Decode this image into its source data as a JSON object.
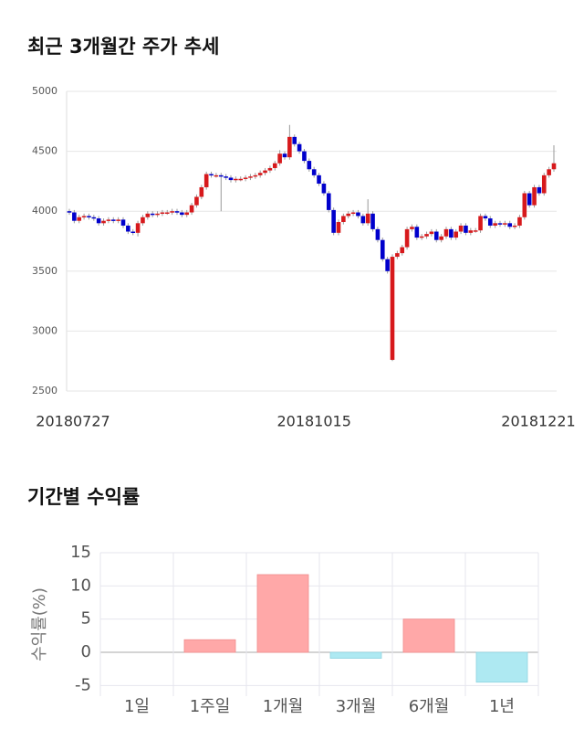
{
  "chart_data": [
    {
      "type": "candlestick",
      "title": "최근 3개월간 주가 추세",
      "categories": [
        "20180727",
        null,
        null,
        null,
        null,
        null,
        null,
        null,
        null,
        null,
        null,
        null,
        null,
        null,
        null,
        null,
        null,
        null,
        null,
        null,
        null,
        null,
        null,
        null,
        null,
        null,
        null,
        null,
        null,
        null,
        null,
        null,
        null,
        null,
        null,
        null,
        null,
        null,
        null,
        null,
        null,
        null,
        null,
        null,
        null,
        null,
        null,
        null,
        null,
        null,
        "20181015",
        null,
        null,
        null,
        null,
        null,
        null,
        null,
        null,
        null,
        null,
        null,
        null,
        null,
        null,
        null,
        null,
        null,
        null,
        null,
        null,
        null,
        null,
        null,
        null,
        null,
        null,
        null,
        null,
        null,
        null,
        null,
        null,
        null,
        null,
        null,
        null,
        null,
        null,
        null,
        null,
        null,
        null,
        null,
        null,
        null,
        null,
        null,
        null,
        "20181221"
      ],
      "open": [
        4000,
        3990,
        3920,
        3950,
        3960,
        3950,
        3940,
        3900,
        3920,
        3930,
        3920,
        3930,
        3880,
        3830,
        3820,
        3900,
        3950,
        3980,
        3970,
        3980,
        3990,
        3990,
        4000,
        3990,
        3970,
        3990,
        4050,
        4120,
        4200,
        4310,
        4300,
        4300,
        4290,
        4280,
        4260,
        4270,
        4270,
        4280,
        4290,
        4300,
        4320,
        4340,
        4360,
        4400,
        4480,
        4450,
        4620,
        4560,
        4500,
        4420,
        4350,
        4300,
        4230,
        4150,
        4010,
        3820,
        3910,
        3960,
        3980,
        3990,
        3960,
        3900,
        3980,
        3850,
        3760,
        3600,
        2760,
        3620,
        3650,
        3700,
        3850,
        3870,
        3780,
        3790,
        3810,
        3830,
        3760,
        3790,
        3850,
        3780,
        3830,
        3880,
        3820,
        3840,
        3840,
        3960,
        3940,
        3880,
        3900,
        3890,
        3900,
        3870,
        3880,
        3950,
        4150,
        4050,
        4200,
        4150,
        4300,
        4350
      ],
      "high": [
        4020,
        4010,
        3970,
        3980,
        3980,
        3970,
        3960,
        3940,
        3950,
        3950,
        3950,
        3950,
        3900,
        3850,
        3920,
        3970,
        4000,
        4000,
        4000,
        4010,
        4010,
        4020,
        4020,
        4010,
        4010,
        4070,
        4140,
        4220,
        4330,
        4330,
        4320,
        4320,
        4310,
        4300,
        4290,
        4290,
        4300,
        4310,
        4320,
        4340,
        4360,
        4380,
        4420,
        4510,
        4500,
        4720,
        4640,
        4580,
        4520,
        4440,
        4370,
        4320,
        4250,
        4170,
        4030,
        3930,
        3980,
        4000,
        4010,
        4010,
        3980,
        4100,
        4000,
        3870,
        3780,
        3620,
        3640,
        3670,
        3720,
        3870,
        3890,
        3890,
        3810,
        3830,
        3850,
        3850,
        3810,
        3870,
        3870,
        3850,
        3900,
        3900,
        3860,
        3860,
        3980,
        3980,
        3960,
        3920,
        3920,
        3920,
        3920,
        3900,
        3970,
        4170,
        4170,
        4220,
        4220,
        4320,
        4370,
        4550
      ],
      "low": [
        3970,
        3900,
        3900,
        3930,
        3930,
        3920,
        3880,
        3880,
        3900,
        3900,
        3900,
        3860,
        3810,
        3800,
        3790,
        3880,
        3930,
        3950,
        3950,
        3960,
        3970,
        3970,
        3970,
        3950,
        3950,
        3970,
        4030,
        4100,
        4180,
        4280,
        4280,
        4000,
        4260,
        4240,
        4240,
        4250,
        4250,
        4260,
        4270,
        4280,
        4300,
        4320,
        4340,
        4380,
        4430,
        4430,
        4540,
        4480,
        4400,
        4330,
        4280,
        4210,
        4130,
        3990,
        3800,
        3800,
        3890,
        3940,
        3960,
        3940,
        3880,
        3880,
        3830,
        3740,
        3580,
        3480,
        2750,
        3600,
        3630,
        3680,
        3830,
        3760,
        3760,
        3770,
        3790,
        3740,
        3740,
        3770,
        3760,
        3760,
        3810,
        3800,
        3800,
        3820,
        3820,
        3920,
        3860,
        3860,
        3870,
        3870,
        3850,
        3850,
        3860,
        3930,
        4030,
        4030,
        4130,
        4130,
        4280,
        4330
      ],
      "close": [
        3990,
        3920,
        3950,
        3960,
        3950,
        3940,
        3900,
        3920,
        3930,
        3920,
        3930,
        3880,
        3830,
        3820,
        3900,
        3950,
        3980,
        3970,
        3980,
        3990,
        3990,
        4000,
        3990,
        3970,
        3990,
        4050,
        4120,
        4200,
        4310,
        4300,
        4300,
        4290,
        4280,
        4260,
        4270,
        4270,
        4280,
        4290,
        4300,
        4320,
        4340,
        4360,
        4400,
        4480,
        4450,
        4620,
        4560,
        4500,
        4420,
        4350,
        4300,
        4230,
        4150,
        4010,
        3820,
        3910,
        3960,
        3980,
        3990,
        3960,
        3900,
        3980,
        3850,
        3760,
        3600,
        3500,
        3620,
        3650,
        3700,
        3850,
        3870,
        3780,
        3790,
        3810,
        3830,
        3760,
        3790,
        3850,
        3780,
        3830,
        3880,
        3820,
        3840,
        3840,
        3960,
        3940,
        3880,
        3900,
        3890,
        3900,
        3870,
        3880,
        3950,
        4150,
        4050,
        4200,
        4150,
        4300,
        4350,
        4400
      ],
      "up_color": "#d7191c",
      "down_color": "#0000cc",
      "ylim": [
        2500,
        5000
      ],
      "yticks": [
        2500,
        3000,
        3500,
        4000,
        4500,
        5000
      ],
      "grid": true
    },
    {
      "type": "bar",
      "title": "기간별 수익률",
      "ylabel": "수익률(%)",
      "categories": [
        "1일",
        "1주일",
        "1개월",
        "3개월",
        "6개월",
        "1년"
      ],
      "values": [
        0,
        1.9,
        11.7,
        -0.9,
        5.0,
        -4.5
      ],
      "positive_color": "#ffa8a8",
      "negative_color": "#aee9f2",
      "ylim": [
        -6.6,
        15
      ],
      "yticks": [
        -5,
        0,
        5,
        10,
        15
      ],
      "grid": true
    }
  ]
}
